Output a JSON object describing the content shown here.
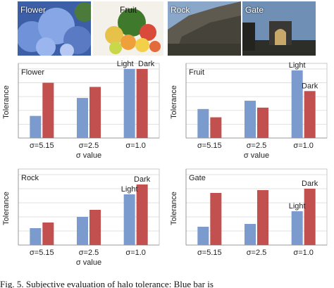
{
  "photos": [
    {
      "label": "Flower"
    },
    {
      "label": "Fruit"
    },
    {
      "label": "Rock"
    },
    {
      "label": "Gate"
    }
  ],
  "colors": {
    "light_bar": "#7b9bcf",
    "dark_bar": "#c1504e",
    "grid": "#d9d9d9",
    "axis": "#999999"
  },
  "caption": "Fig. 5. Subjective evaluation of halo tolerance: Blue bar is",
  "chart_data": [
    {
      "type": "bar",
      "title": "Flower",
      "ylabel": "Tolerance",
      "xlabel": "σ value",
      "categories": [
        "σ=5.15",
        "σ=2.5",
        "σ=1.0"
      ],
      "ylim": [
        0,
        5.2
      ],
      "grid": true,
      "series": [
        {
          "name": "Light",
          "color": "#7b9bcf",
          "values": [
            1.6,
            2.9,
            5.0
          ]
        },
        {
          "name": "Dark",
          "color": "#c1504e",
          "values": [
            4.0,
            3.7,
            5.0
          ]
        }
      ],
      "annotations": [
        {
          "text": "Light",
          "anchor": "series-0-cat-2"
        },
        {
          "text": "Dark",
          "anchor": "series-1-cat-2"
        }
      ]
    },
    {
      "type": "bar",
      "title": "Fruit",
      "ylabel": "Tolerance",
      "xlabel": "σ value",
      "categories": [
        "σ=5.15",
        "σ=2.5",
        "σ=1.0"
      ],
      "ylim": [
        0,
        5.2
      ],
      "grid": true,
      "series": [
        {
          "name": "Light",
          "color": "#7b9bcf",
          "values": [
            2.1,
            2.7,
            4.9
          ]
        },
        {
          "name": "Dark",
          "color": "#c1504e",
          "values": [
            1.5,
            2.2,
            3.4
          ]
        }
      ],
      "annotations": [
        {
          "text": "Light",
          "anchor": "series-0-cat-2"
        },
        {
          "text": "Dark",
          "anchor": "series-1-cat-2"
        }
      ]
    },
    {
      "type": "bar",
      "title": "Rock",
      "ylabel": "Tolerance",
      "xlabel": "σ value",
      "categories": [
        "σ=5.15",
        "σ=2.5",
        "σ=1.0"
      ],
      "ylim": [
        0,
        5.2
      ],
      "grid": true,
      "series": [
        {
          "name": "Light",
          "color": "#7b9bcf",
          "values": [
            1.2,
            2.0,
            3.6
          ]
        },
        {
          "name": "Dark",
          "color": "#c1504e",
          "values": [
            1.6,
            2.5,
            4.3
          ]
        }
      ],
      "annotations": [
        {
          "text": "Light",
          "anchor": "series-0-cat-2"
        },
        {
          "text": "Dark",
          "anchor": "series-1-cat-2"
        }
      ]
    },
    {
      "type": "bar",
      "title": "Gate",
      "ylabel": "Tolerance",
      "xlabel": "",
      "categories": [
        "σ=5.15",
        "σ=2.5",
        "σ=1.0"
      ],
      "ylim": [
        0,
        5.2
      ],
      "grid": true,
      "series": [
        {
          "name": "Light",
          "color": "#7b9bcf",
          "values": [
            1.3,
            1.5,
            2.4
          ]
        },
        {
          "name": "Dark",
          "color": "#c1504e",
          "values": [
            3.7,
            3.9,
            4.0
          ]
        }
      ],
      "annotations": [
        {
          "text": "Light",
          "anchor": "series-0-cat-2"
        },
        {
          "text": "Dark",
          "anchor": "series-1-cat-2"
        }
      ]
    }
  ]
}
